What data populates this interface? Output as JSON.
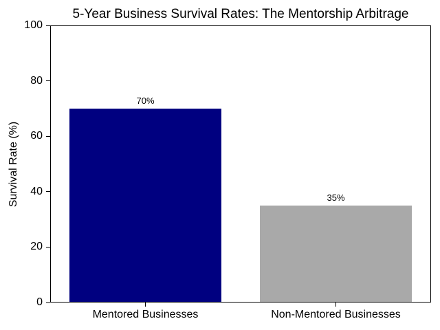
{
  "chart_data": {
    "type": "bar",
    "title": "5-Year Business Survival Rates: The Mentorship Arbitrage",
    "categories": [
      "Mentored Businesses",
      "Non-Mentored Businesses"
    ],
    "values": [
      70,
      35
    ],
    "value_labels": [
      "70%",
      "35%"
    ],
    "bar_colors": [
      "#000080",
      "#A9A9A9"
    ],
    "xlabel": "",
    "ylabel": "Survival Rate (%)",
    "ylim": [
      0,
      100
    ],
    "yticks": [
      "0",
      "20",
      "40",
      "60",
      "80",
      "100"
    ],
    "bar_width_fraction": 0.8,
    "grid": false,
    "legend": "none",
    "axis_color": "#000000",
    "text_color": "#000000",
    "background_color": "#FFFFFF"
  }
}
